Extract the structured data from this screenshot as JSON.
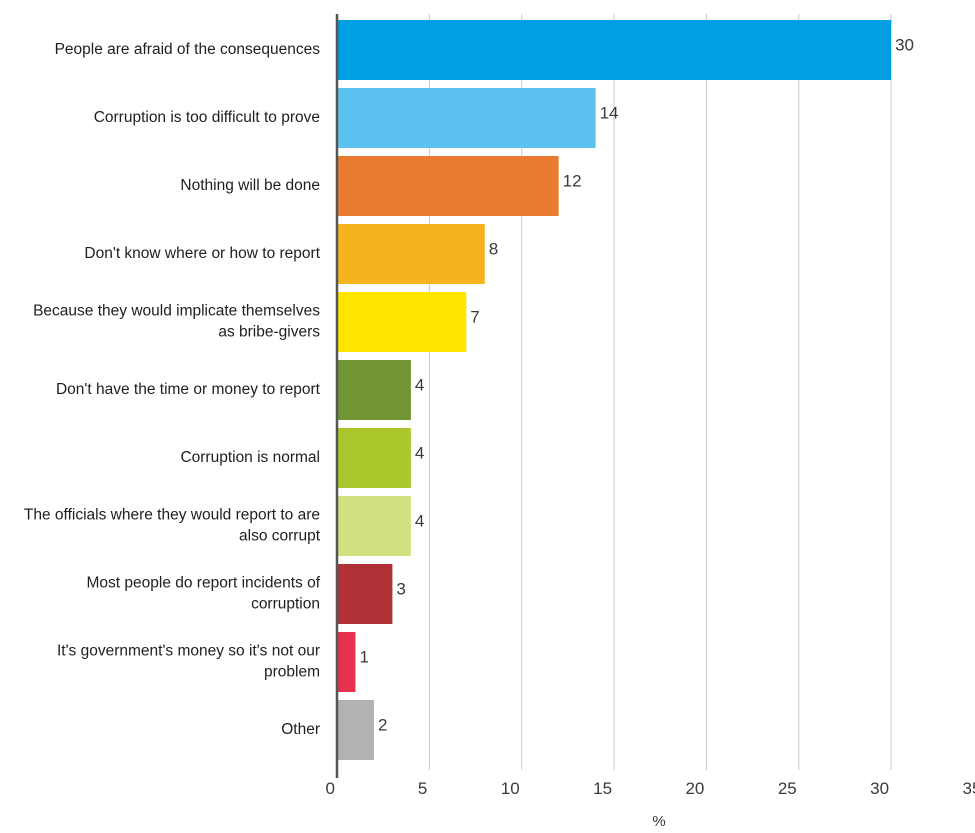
{
  "chart_data": {
    "type": "bar",
    "orientation": "horizontal",
    "categories": [
      [
        "People are afraid of the consequences"
      ],
      [
        "Corruption is too difficult to prove"
      ],
      [
        "Nothing will be done"
      ],
      [
        "Don't know where or how to report"
      ],
      [
        "Because they would implicate themselves",
        "as bribe-givers"
      ],
      [
        "Don't have the time or money to report"
      ],
      [
        "Corruption is normal"
      ],
      [
        "The officials where they would report to are",
        "also corrupt"
      ],
      [
        "Most people do report incidents of",
        "corruption"
      ],
      [
        "It's government's money so it's not our",
        "problem"
      ],
      [
        "Other"
      ]
    ],
    "values": [
      30,
      14,
      12,
      8,
      7,
      4,
      4,
      4,
      3,
      1,
      2
    ],
    "colors": [
      "#009fe3",
      "#5bc2f0",
      "#e87b2f",
      "#f5b31d",
      "#ffe600",
      "#709532",
      "#a9c72b",
      "#d2e07f",
      "#b03236",
      "#e5334f",
      "#b2b2b2"
    ],
    "xlabel": "%",
    "ylabel": "",
    "title": "",
    "xlim": [
      0,
      35
    ],
    "xticks": [
      "0",
      "5",
      "10",
      "15",
      "20",
      "25",
      "30",
      "35"
    ],
    "grid": true,
    "legend": "none"
  }
}
